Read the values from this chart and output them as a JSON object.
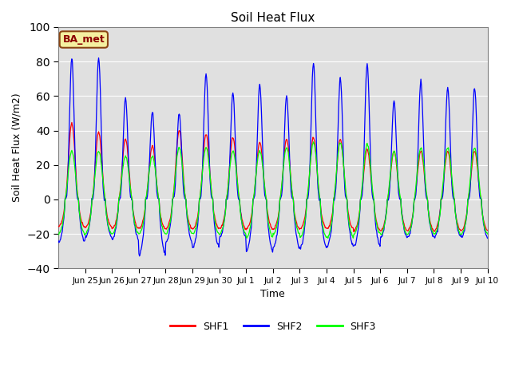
{
  "title": "Soil Heat Flux",
  "xlabel": "Time",
  "ylabel": "Soil Heat Flux (W/m2)",
  "ylim": [
    -40,
    100
  ],
  "yticks": [
    -40,
    -20,
    0,
    20,
    40,
    60,
    80,
    100
  ],
  "plot_bg_color": "#e0e0e0",
  "line_colors": {
    "SHF1": "red",
    "SHF2": "blue",
    "SHF3": "lime"
  },
  "annotation_text": "BA_met",
  "annotation_box_color": "#f5f0a0",
  "annotation_border_color": "#8B4513",
  "shf1_peaks": [
    44,
    39,
    35,
    31,
    40,
    38,
    36,
    33,
    35,
    36,
    35,
    29,
    28,
    28,
    28,
    28
  ],
  "shf2_peaks": [
    82,
    82,
    59,
    51,
    50,
    73,
    62,
    67,
    60,
    79,
    70,
    79,
    57,
    69,
    65,
    65
  ],
  "shf3_peaks": [
    28,
    28,
    25,
    25,
    30,
    30,
    28,
    28,
    30,
    33,
    33,
    32,
    28,
    30,
    30,
    30
  ],
  "shf1_troughs": [
    -16,
    -16,
    -17,
    -17,
    -17,
    -17,
    -17,
    -17,
    -17,
    -17,
    -17,
    -18,
    -18,
    -18,
    -18,
    -18
  ],
  "shf2_troughs": [
    -25,
    -22,
    -23,
    -32,
    -25,
    -28,
    -22,
    -30,
    -28,
    -28,
    -27,
    -27,
    -22,
    -22,
    -22,
    -22
  ],
  "shf3_troughs": [
    -20,
    -20,
    -20,
    -20,
    -20,
    -20,
    -20,
    -22,
    -20,
    -22,
    -22,
    -20,
    -20,
    -20,
    -20,
    -20
  ],
  "num_days": 16,
  "pts_per_day": 48,
  "tick_labels": [
    "Jun 25",
    "Jun 26",
    "Jun 27",
    "Jun 28",
    "Jun 29",
    "Jun 30",
    "Jul 1",
    "Jul 2",
    "Jul 3",
    "Jul 4",
    "Jul 5",
    "Jul 6",
    "Jul 7",
    "Jul 8",
    "Jul 9",
    "Jul 10"
  ]
}
